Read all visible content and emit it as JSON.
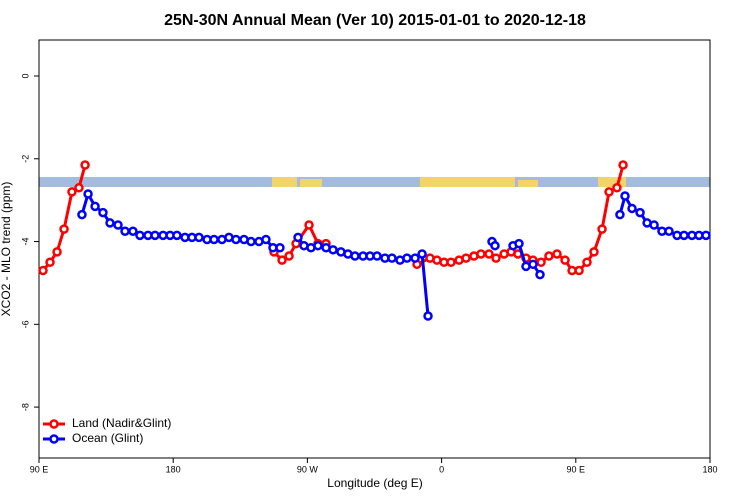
{
  "chart_data": {
    "type": "line",
    "title": "25N-30N Annual Mean (Ver 10)   2015-01-01 to 2020-12-18",
    "x_label": "Longitude (deg E)",
    "y_label": "XCO2 - MLO trend (ppm)",
    "xlim": [
      90,
      540
    ],
    "ylim": [
      -9.23,
      0.87
    ],
    "xticks": [
      {
        "value": 90,
        "label": "90 E"
      },
      180,
      {
        "value": 270,
        "label": "90 W"
      },
      {
        "value": 360,
        "label": "0"
      },
      {
        "value": 450,
        "label": "90 E"
      },
      {
        "value": 540,
        "label": "180"
      }
    ],
    "yticks": [
      0,
      -2,
      -4,
      -6,
      -8
    ],
    "grid": false,
    "legend": "bottom-left",
    "series": [
      {
        "name": "Land (Nadir&Glint)",
        "color": "#ff0000",
        "x": [
          92.7,
          97.4,
          102.1,
          106.8,
          112.1,
          116.8,
          120.9,
          null,
          247.6,
          253.0,
          257.7,
          262.4,
          271.1,
          277.1,
          282.5,
          null,
          343.5,
          352.2,
          356.9,
          361.6,
          366.3,
          371.7,
          376.4,
          381.7,
          386.4,
          391.8,
          396.5,
          401.9,
          406.6,
          411.2,
          416.6,
          421.3,
          426.7,
          432.0,
          437.4,
          442.8,
          447.5,
          452.2,
          457.5,
          462.2,
          467.6,
          472.3,
          477.6,
          481.7
        ],
        "values": [
          -4.7,
          -4.5,
          -4.25,
          -3.7,
          -2.8,
          -2.7,
          -2.15,
          null,
          -4.25,
          -4.45,
          -4.35,
          -4.05,
          -3.6,
          -4.05,
          -4.05,
          null,
          -4.55,
          -4.4,
          -4.45,
          -4.5,
          -4.5,
          -4.45,
          -4.4,
          -4.35,
          -4.3,
          -4.3,
          -4.4,
          -4.3,
          -4.25,
          -4.3,
          -4.4,
          -4.45,
          -4.5,
          -4.35,
          -4.3,
          -4.45,
          -4.7,
          -4.7,
          -4.5,
          -4.25,
          -3.7,
          -2.8,
          -2.7,
          -2.15
        ]
      },
      {
        "name": "Ocean (Glint)",
        "color": "#0000ff",
        "x": [
          118.8,
          122.9,
          127.6,
          132.9,
          137.6,
          143.0,
          147.7,
          153.0,
          157.7,
          163.1,
          167.8,
          173.2,
          177.9,
          182.5,
          187.9,
          192.6,
          197.3,
          202.7,
          207.4,
          212.7,
          217.4,
          222.1,
          227.5,
          232.2,
          237.5,
          242.2,
          246.9,
          251.6,
          null,
          263.7,
          267.7,
          272.4,
          277.1,
          282.5,
          287.2,
          292.5,
          297.2,
          301.9,
          307.3,
          312.0,
          316.7,
          322.0,
          326.7,
          332.1,
          336.8,
          342.2,
          346.9,
          350.9,
          null,
          393.8,
          395.8,
          null,
          407.9,
          411.9,
          416.6,
          421.3,
          426.0,
          null,
          479.6,
          483.0,
          487.7,
          493.1,
          497.8,
          502.5,
          507.8,
          512.5,
          517.9,
          522.6,
          527.9,
          532.6,
          537.3
        ],
        "values": [
          -3.35,
          -2.85,
          -3.15,
          -3.3,
          -3.55,
          -3.6,
          -3.75,
          -3.75,
          -3.85,
          -3.85,
          -3.85,
          -3.85,
          -3.85,
          -3.85,
          -3.9,
          -3.9,
          -3.9,
          -3.95,
          -3.95,
          -3.95,
          -3.9,
          -3.95,
          -3.95,
          -4.0,
          -4.0,
          -3.95,
          -4.15,
          -4.15,
          null,
          -3.9,
          -4.1,
          -4.15,
          -4.1,
          -4.15,
          -4.2,
          -4.25,
          -4.3,
          -4.35,
          -4.35,
          -4.35,
          -4.35,
          -4.4,
          -4.4,
          -4.45,
          -4.4,
          -4.4,
          -4.3,
          -5.8,
          null,
          -4.0,
          -4.1,
          null,
          -4.1,
          -4.05,
          -4.6,
          -4.55,
          -4.8,
          null,
          -3.35,
          -2.9,
          -3.2,
          -3.3,
          -3.55,
          -3.6,
          -3.75,
          -3.75,
          -3.85,
          -3.85,
          -3.85,
          -3.85,
          -3.85
        ]
      }
    ]
  }
}
